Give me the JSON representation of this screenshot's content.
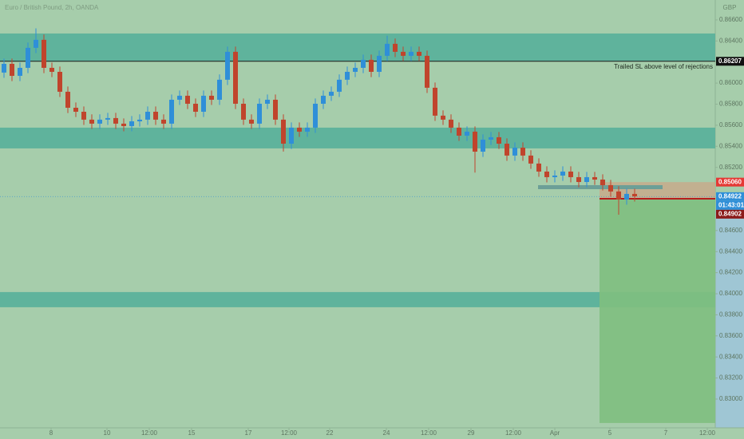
{
  "chart_data": {
    "type": "candlestick",
    "title": "Euro / British Pound, 2h, OANDA",
    "currency": "GBP",
    "background": "#a6cdab",
    "up_color": "#2f8fd8",
    "down_color": "#c0442c",
    "open": [
      0.861,
      0.86183,
      0.86069,
      0.86145,
      0.86335,
      0.86411,
      0.86145,
      0.86107,
      0.85918,
      0.85766,
      0.85728,
      0.85653,
      0.85615,
      0.85653,
      0.85668,
      0.85615,
      0.85592,
      0.85637,
      0.85653,
      0.85728,
      0.85653,
      0.85615,
      0.85842,
      0.8588,
      0.85804,
      0.85728,
      0.8588,
      0.85842,
      0.86032,
      0.86297,
      0.85804,
      0.85653,
      0.85615,
      0.85804,
      0.85842,
      0.85653,
      0.85425,
      0.85577,
      0.85539,
      0.85577,
      0.85804,
      0.8588,
      0.85918,
      0.86032,
      0.86107,
      0.86145,
      0.86221,
      0.86107,
      0.86259,
      0.86373,
      0.86297,
      0.86259,
      0.86297,
      0.86259,
      0.85956,
      0.85691,
      0.85653,
      0.85577,
      0.85501,
      0.85539,
      0.85349,
      0.85463,
      0.85486,
      0.85425,
      0.85312,
      0.85387,
      0.85312,
      0.85236,
      0.8516,
      0.85107,
      0.85122,
      0.8516,
      0.85107,
      0.85061,
      0.85107,
      0.85084,
      0.85031,
      0.84971,
      0.84895,
      0.84948
    ],
    "high": [
      0.86233,
      0.86233,
      0.86195,
      0.86385,
      0.8652,
      0.86461,
      0.86195,
      0.86157,
      0.85968,
      0.85816,
      0.85778,
      0.85703,
      0.85703,
      0.85718,
      0.85718,
      0.85665,
      0.85687,
      0.85703,
      0.85778,
      0.85778,
      0.85703,
      0.85892,
      0.8593,
      0.8593,
      0.85854,
      0.8593,
      0.8593,
      0.86082,
      0.86347,
      0.86347,
      0.85854,
      0.85703,
      0.85854,
      0.85892,
      0.85892,
      0.85703,
      0.85627,
      0.85627,
      0.85627,
      0.85854,
      0.8593,
      0.85968,
      0.86082,
      0.86157,
      0.86195,
      0.86271,
      0.86271,
      0.86309,
      0.8645,
      0.86423,
      0.86347,
      0.86347,
      0.86347,
      0.86309,
      0.86006,
      0.85741,
      0.85703,
      0.85627,
      0.85589,
      0.85589,
      0.85513,
      0.85536,
      0.85536,
      0.85475,
      0.85437,
      0.85437,
      0.85362,
      0.85286,
      0.8521,
      0.85172,
      0.8521,
      0.8521,
      0.85157,
      0.85157,
      0.85157,
      0.85134,
      0.85081,
      0.85021,
      0.84998,
      0.84998
    ],
    "low": [
      0.8605,
      0.86019,
      0.86019,
      0.86095,
      0.86285,
      0.86095,
      0.86057,
      0.85868,
      0.85716,
      0.85678,
      0.85603,
      0.85565,
      0.85565,
      0.85603,
      0.85565,
      0.85542,
      0.85542,
      0.85587,
      0.85603,
      0.85603,
      0.85565,
      0.85565,
      0.85792,
      0.85754,
      0.85678,
      0.85678,
      0.85792,
      0.85792,
      0.85982,
      0.85754,
      0.85603,
      0.85565,
      0.85565,
      0.85754,
      0.85603,
      0.8535,
      0.85375,
      0.85489,
      0.85489,
      0.85527,
      0.85754,
      0.8583,
      0.85868,
      0.85982,
      0.86057,
      0.86095,
      0.86057,
      0.86057,
      0.86209,
      0.86247,
      0.86209,
      0.86209,
      0.86209,
      0.85906,
      0.85641,
      0.85603,
      0.85527,
      0.85451,
      0.85451,
      0.8515,
      0.85299,
      0.85413,
      0.85375,
      0.85262,
      0.85262,
      0.85262,
      0.85186,
      0.8511,
      0.85057,
      0.85057,
      0.85072,
      0.85057,
      0.85011,
      0.85011,
      0.85034,
      0.84981,
      0.84921,
      0.8475,
      0.84845,
      0.84875
    ],
    "close": [
      0.86183,
      0.86069,
      0.86145,
      0.86335,
      0.86411,
      0.86145,
      0.86107,
      0.85918,
      0.85766,
      0.85728,
      0.85653,
      0.85615,
      0.85653,
      0.85668,
      0.85615,
      0.85592,
      0.85637,
      0.85653,
      0.85728,
      0.85653,
      0.85615,
      0.85842,
      0.8588,
      0.85804,
      0.85728,
      0.8588,
      0.85842,
      0.86032,
      0.86297,
      0.85804,
      0.85653,
      0.85615,
      0.85804,
      0.85842,
      0.85653,
      0.85425,
      0.85577,
      0.85539,
      0.85577,
      0.85804,
      0.8588,
      0.85918,
      0.86032,
      0.86107,
      0.86145,
      0.86221,
      0.86107,
      0.86259,
      0.86373,
      0.86297,
      0.86259,
      0.86297,
      0.86259,
      0.85956,
      0.85691,
      0.85653,
      0.85577,
      0.85501,
      0.85539,
      0.85349,
      0.85463,
      0.85486,
      0.85425,
      0.85312,
      0.85387,
      0.85312,
      0.85236,
      0.8516,
      0.85107,
      0.85122,
      0.8516,
      0.85107,
      0.85061,
      0.85107,
      0.85084,
      0.85031,
      0.84971,
      0.84895,
      0.84948,
      0.84925
    ],
    "xlim": [
      -0.5,
      89.1
    ],
    "xticks": [
      {
        "value": 5.9,
        "label": "8"
      },
      {
        "value": 12.9,
        "label": "10"
      },
      {
        "value": 18.2,
        "label": "12:00"
      },
      {
        "value": 23.5,
        "label": "15"
      },
      {
        "value": 30.6,
        "label": "17"
      },
      {
        "value": 35.7,
        "label": "12:00"
      },
      {
        "value": 40.8,
        "label": "22"
      },
      {
        "value": 47.9,
        "label": "24"
      },
      {
        "value": 53.2,
        "label": "12:00"
      },
      {
        "value": 58.5,
        "label": "29"
      },
      {
        "value": 63.8,
        "label": "12:00"
      },
      {
        "value": 69,
        "label": "Apr"
      },
      {
        "value": 75.9,
        "label": "5"
      },
      {
        "value": 82.9,
        "label": "7"
      },
      {
        "value": 88.1,
        "label": "12:00"
      }
    ],
    "ylim": [
      0.82727,
      0.86789
    ],
    "yticks": [
      {
        "value": 0.866,
        "label": "0.86600"
      },
      {
        "value": 0.864,
        "label": "0.86400"
      },
      {
        "value": 0.86,
        "label": "0.86000"
      },
      {
        "value": 0.858,
        "label": "0.85800"
      },
      {
        "value": 0.856,
        "label": "0.85600"
      },
      {
        "value": 0.854,
        "label": "0.85400"
      },
      {
        "value": 0.852,
        "label": "0.85200"
      },
      {
        "value": 0.846,
        "label": "0.84600"
      },
      {
        "value": 0.844,
        "label": "0.84400"
      },
      {
        "value": 0.842,
        "label": "0.84200"
      },
      {
        "value": 0.84,
        "label": "0.84000"
      },
      {
        "value": 0.838,
        "label": "0.83800"
      },
      {
        "value": 0.836,
        "label": "0.83600"
      },
      {
        "value": 0.834,
        "label": "0.83400"
      },
      {
        "value": 0.832,
        "label": "0.83200"
      },
      {
        "value": 0.83,
        "label": "0.83000"
      }
    ],
    "zones": [
      {
        "top": 0.86471,
        "bottom": 0.86206,
        "color": "#5fb39c"
      },
      {
        "top": 0.85577,
        "bottom": 0.8538,
        "color": "#5fb39c"
      },
      {
        "top": 0.84016,
        "bottom": 0.83872,
        "color": "#5fb39c"
      }
    ],
    "small_zone": {
      "x": [
        66.9,
        82.5
      ],
      "top": 0.85031,
      "bottom": 0.84993,
      "color": "#6c9f97"
    },
    "level": {
      "value": 0.86207,
      "annotation": "Trailed SL above level of rejections"
    },
    "position": {
      "start": 74.6,
      "stop": {
        "value": 0.8506,
        "label": "0.85060"
      },
      "entry": 0.84902,
      "target": 0.82773
    },
    "last_price": 0.84922,
    "countdown": "01:43:01"
  }
}
